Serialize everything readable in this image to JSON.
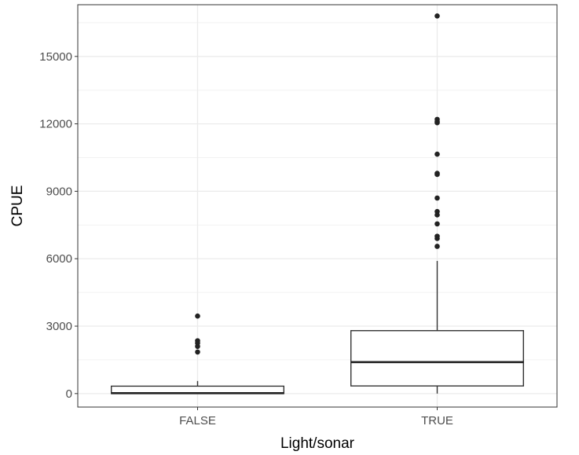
{
  "chart_data": {
    "type": "boxplot",
    "title": "",
    "xlabel": "Light/sonar",
    "ylabel": "CPUE",
    "categories": [
      "FALSE",
      "TRUE"
    ],
    "ylim": [
      -600,
      17300
    ],
    "yticks": [
      0,
      3000,
      6000,
      9000,
      12000,
      15000
    ],
    "y_tick_labels": [
      "0",
      "3000",
      "6000",
      "9000",
      "12000",
      "15000"
    ],
    "grid": true,
    "legend": "none",
    "boxes": [
      {
        "category": "FALSE",
        "whisker_low": 0,
        "q1": 0,
        "median": 20,
        "q3": 330,
        "whisker_high": 560,
        "outliers": [
          1850,
          2100,
          2250,
          2350,
          3450
        ]
      },
      {
        "category": "TRUE",
        "whisker_low": 0,
        "q1": 340,
        "median": 1400,
        "q3": 2800,
        "whisker_high": 5900,
        "outliers": [
          6550,
          6900,
          7000,
          7550,
          7950,
          8100,
          8700,
          9750,
          9800,
          10650,
          12050,
          12100,
          12200,
          16800
        ]
      }
    ]
  }
}
